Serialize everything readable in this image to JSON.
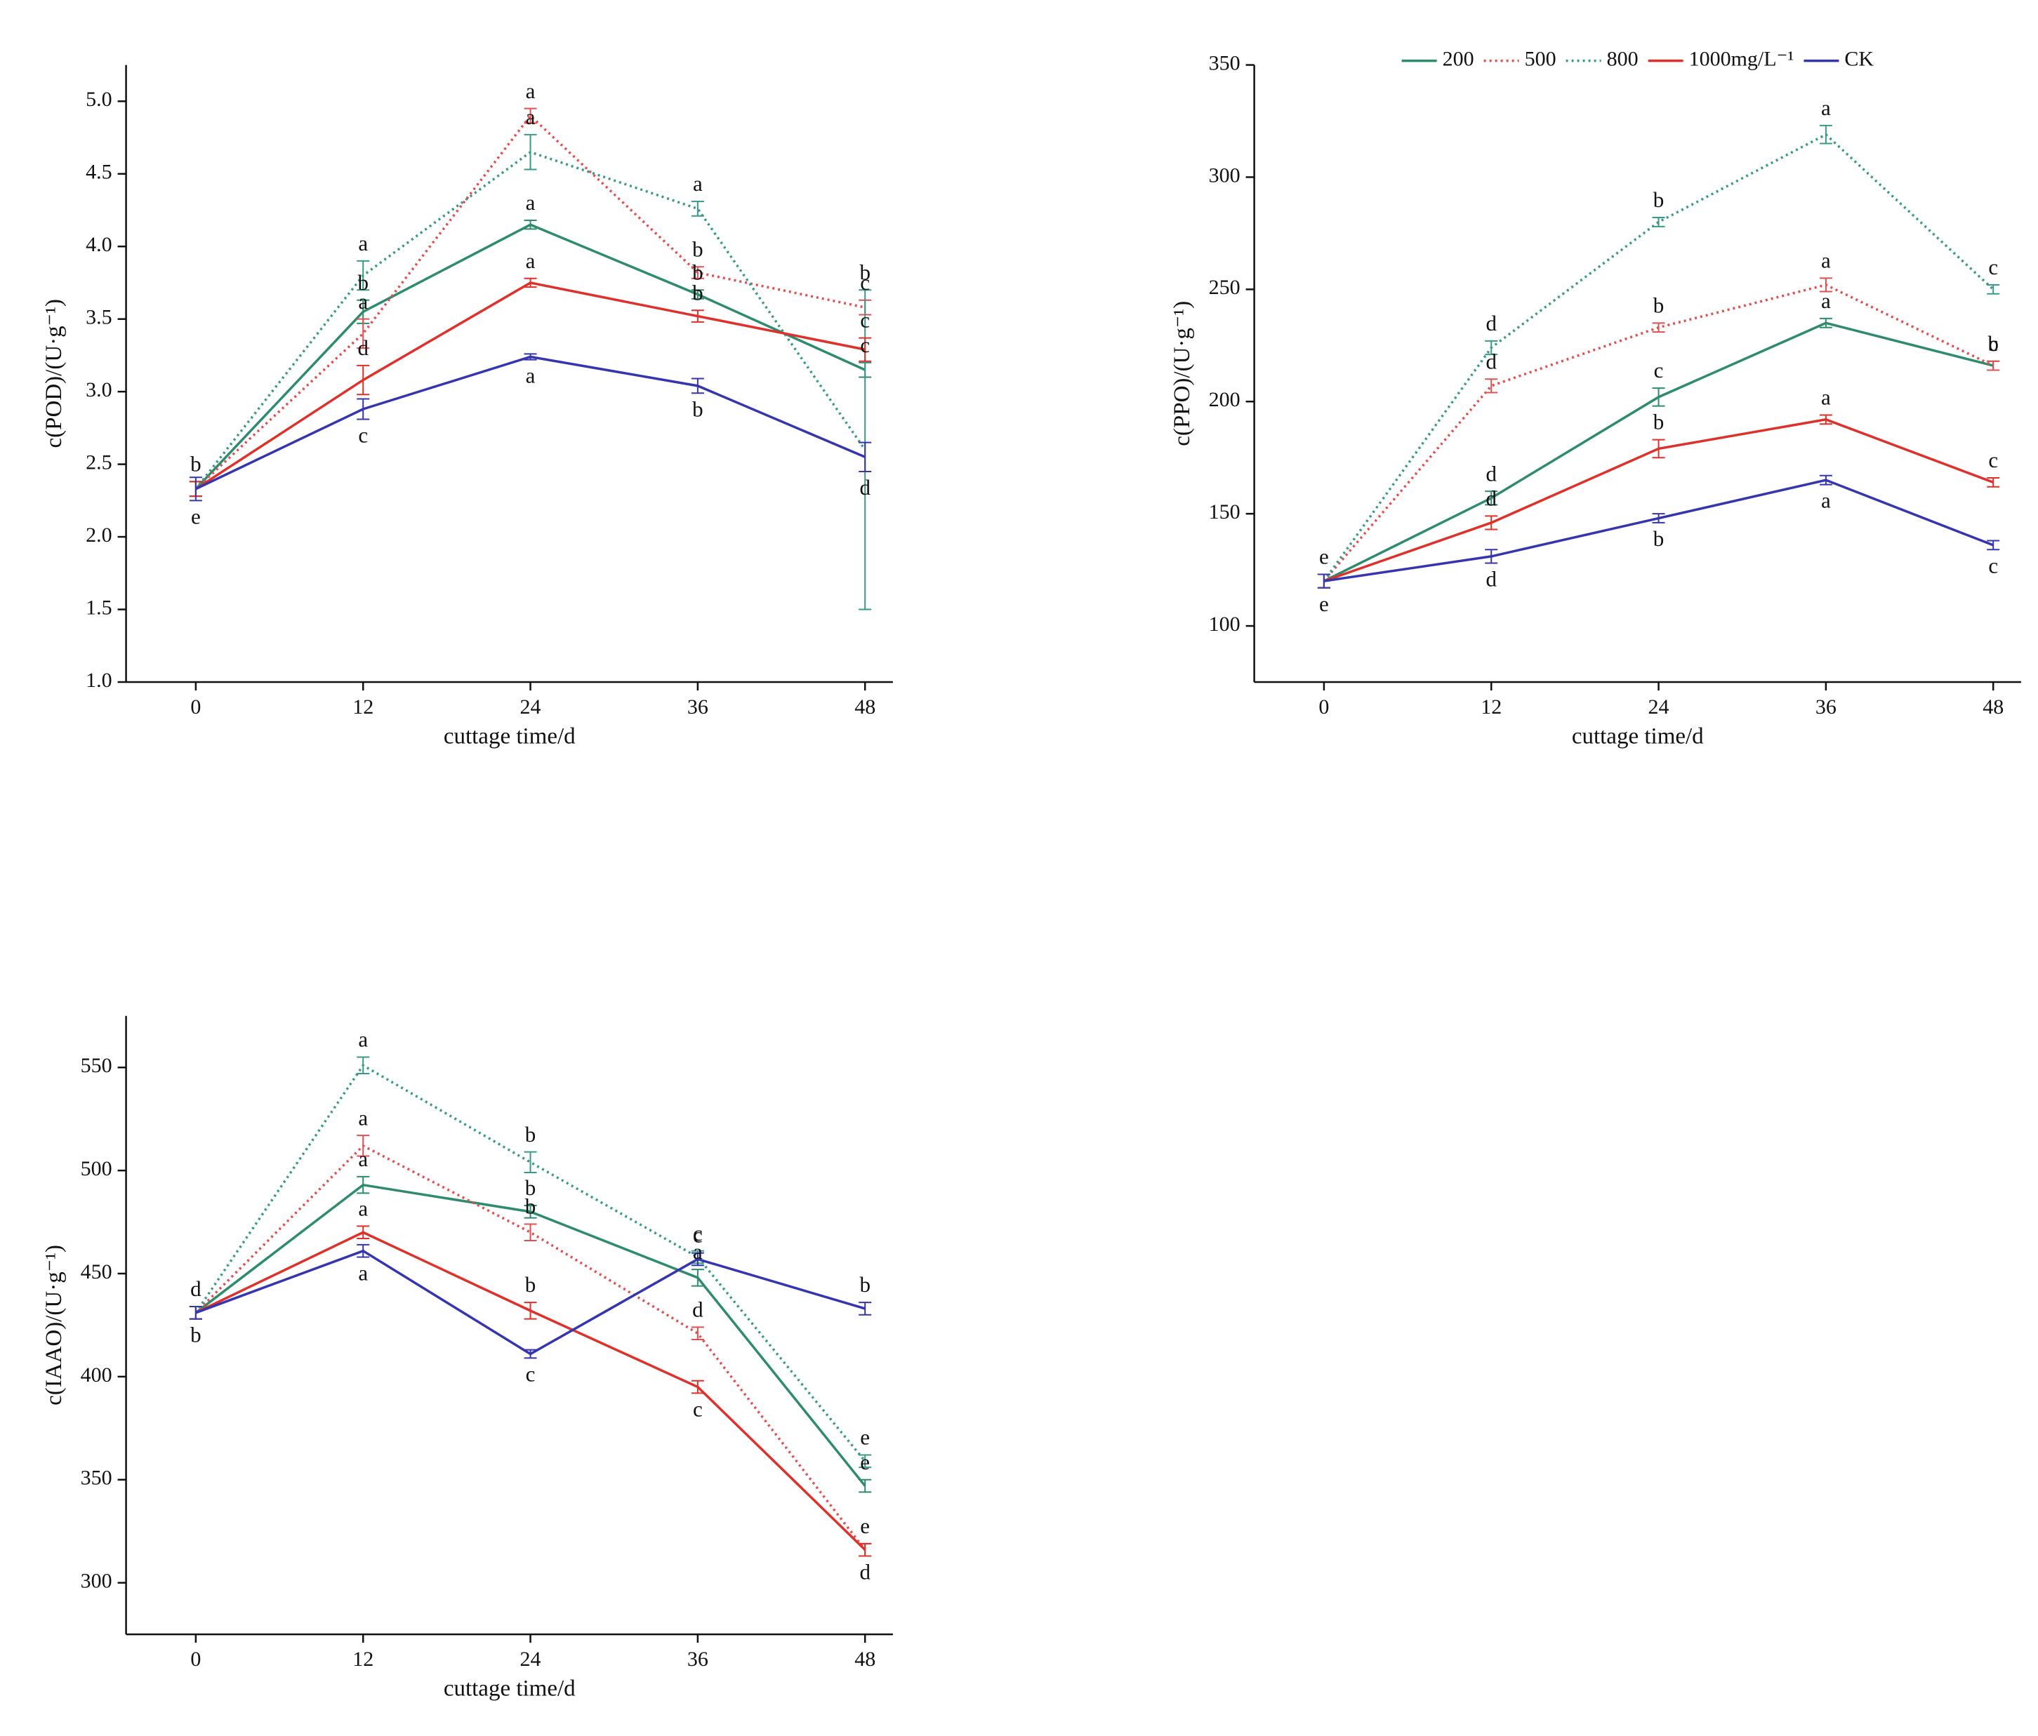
{
  "chart_data": [
    {
      "type": "line",
      "y_label": "c(POD)/(U·g⁻¹)",
      "x_label": "cuttage time/d",
      "x": [
        0,
        12,
        24,
        36,
        48
      ],
      "xlim": [
        -5,
        50
      ],
      "xticks": [
        0,
        12,
        24,
        36,
        48
      ],
      "ylim": [
        1.0,
        5.25
      ],
      "yticks": [
        {
          "value": 1.0,
          "label": "1.0"
        },
        1.5,
        {
          "value": 2.0,
          "label": "2.0"
        },
        2.5,
        {
          "value": 3.0,
          "label": "3.0"
        },
        3.5,
        {
          "value": 4.0,
          "label": "4.0"
        },
        4.5,
        {
          "value": 5.0,
          "label": "5.0"
        }
      ],
      "series": [
        {
          "color": "#2e8b6e",
          "style": "solid",
          "values": [
            2.33,
            3.55,
            4.15,
            3.67,
            3.15
          ],
          "errors": [
            0.05,
            0.08,
            0.03,
            0.03,
            0.05
          ],
          "letters": [
            "b",
            "b",
            "a",
            "b",
            "c"
          ]
        },
        {
          "color": "#e05050",
          "style": "dotted",
          "values": [
            2.33,
            3.4,
            4.9,
            3.82,
            3.58
          ],
          "errors": [
            0.05,
            0.1,
            0.05,
            0.04,
            0.05
          ],
          "letters": [
            null,
            "a",
            "a",
            "b",
            "c"
          ]
        },
        {
          "color": "#3a9a8a",
          "style": "dotted",
          "values": [
            2.33,
            3.8,
            4.65,
            4.26,
            2.6
          ],
          "errors": [
            0.05,
            0.1,
            0.12,
            0.05,
            1.1
          ],
          "letters": [
            null,
            "a",
            "a",
            "a",
            "b"
          ]
        },
        {
          "color": "#e0302a",
          "style": "solid",
          "values": [
            2.33,
            3.08,
            3.75,
            3.52,
            3.29
          ],
          "errors": [
            0.05,
            0.1,
            0.03,
            0.04,
            0.08
          ],
          "letters": [
            null,
            "d",
            "a",
            "b",
            "c"
          ]
        },
        {
          "color": "#3535b0",
          "style": "solid",
          "values": [
            2.33,
            2.88,
            3.24,
            3.04,
            2.55
          ],
          "errors": [
            0.08,
            0.07,
            0.02,
            0.05,
            0.1
          ],
          "letters": [
            "e",
            "c",
            "a",
            "b",
            "d"
          ]
        }
      ]
    },
    {
      "type": "line",
      "y_label": "c(PPO)/(U·g⁻¹)",
      "x_label": "cuttage time/d",
      "legend": true,
      "x": [
        0,
        12,
        24,
        36,
        48
      ],
      "xlim": [
        -5,
        50
      ],
      "xticks": [
        0,
        12,
        24,
        36,
        48
      ],
      "ylim": [
        75,
        350
      ],
      "yticks": [
        100,
        150,
        200,
        250,
        300,
        350
      ],
      "series": [
        {
          "name": "200",
          "color": "#2e8b6e",
          "style": "solid",
          "values": [
            120,
            157,
            202,
            235,
            216
          ],
          "errors": [
            3,
            3,
            4,
            2,
            2
          ],
          "letters": [
            "e",
            "d",
            "c",
            "a",
            "b"
          ]
        },
        {
          "name": "500",
          "color": "#e05050",
          "style": "dotted",
          "values": [
            120,
            207,
            233,
            252,
            216
          ],
          "errors": [
            3,
            3,
            2,
            3,
            2
          ],
          "letters": [
            null,
            "d",
            "b",
            "a",
            "c"
          ]
        },
        {
          "name": "800",
          "color": "#3a9a8a",
          "style": "dotted",
          "values": [
            120,
            224,
            280,
            319,
            250
          ],
          "errors": [
            3,
            3,
            2,
            4,
            2
          ],
          "letters": [
            null,
            "d",
            "b",
            "a",
            "c"
          ]
        },
        {
          "name": "1000mg/L⁻¹",
          "color": "#e0302a",
          "style": "solid",
          "values": [
            120,
            146,
            179,
            192,
            164
          ],
          "errors": [
            3,
            3,
            4,
            2,
            2
          ],
          "letters": [
            null,
            "d",
            "b",
            "a",
            "c"
          ]
        },
        {
          "name": "CK",
          "color": "#3535b0",
          "style": "solid",
          "values": [
            120,
            131,
            148,
            165,
            136
          ],
          "errors": [
            3,
            3,
            2,
            2,
            2
          ],
          "letters": [
            "e",
            "d",
            "b",
            "a",
            "c"
          ]
        }
      ]
    },
    {
      "type": "line",
      "y_label": "c(IAAO)/(U·g⁻¹)",
      "x_label": "cuttage time/d",
      "x": [
        0,
        12,
        24,
        36,
        48
      ],
      "xlim": [
        -5,
        50
      ],
      "xticks": [
        0,
        12,
        24,
        36,
        48
      ],
      "ylim": [
        275,
        575
      ],
      "yticks": [
        300,
        350,
        400,
        450,
        500,
        550
      ],
      "series": [
        {
          "color": "#2e8b6e",
          "style": "solid",
          "values": [
            431,
            493,
            480,
            448,
            347
          ],
          "errors": [
            3,
            4,
            3,
            4,
            3
          ],
          "letters": [
            "d",
            "a",
            "b",
            "a",
            "e"
          ]
        },
        {
          "color": "#e05050",
          "style": "dotted",
          "values": [
            431,
            512,
            470,
            421,
            316
          ],
          "errors": [
            3,
            5,
            4,
            3,
            3
          ],
          "letters": [
            null,
            "a",
            "b",
            "d",
            "e"
          ]
        },
        {
          "color": "#3a9a8a",
          "style": "dotted",
          "values": [
            431,
            551,
            504,
            458,
            359
          ],
          "errors": [
            3,
            4,
            5,
            3,
            3
          ],
          "letters": [
            null,
            "a",
            "b",
            "c",
            "e"
          ]
        },
        {
          "color": "#e0302a",
          "style": "solid",
          "values": [
            431,
            470,
            432,
            395,
            316
          ],
          "errors": [
            3,
            3,
            4,
            3,
            3
          ],
          "letters": [
            null,
            "a",
            "b",
            "c",
            "d"
          ]
        },
        {
          "color": "#3535b0",
          "style": "solid",
          "values": [
            431,
            461,
            411,
            457,
            433
          ],
          "errors": [
            3,
            3,
            2,
            3,
            3
          ],
          "letters": [
            "b",
            "a",
            "c",
            "c",
            "b"
          ]
        }
      ]
    }
  ]
}
